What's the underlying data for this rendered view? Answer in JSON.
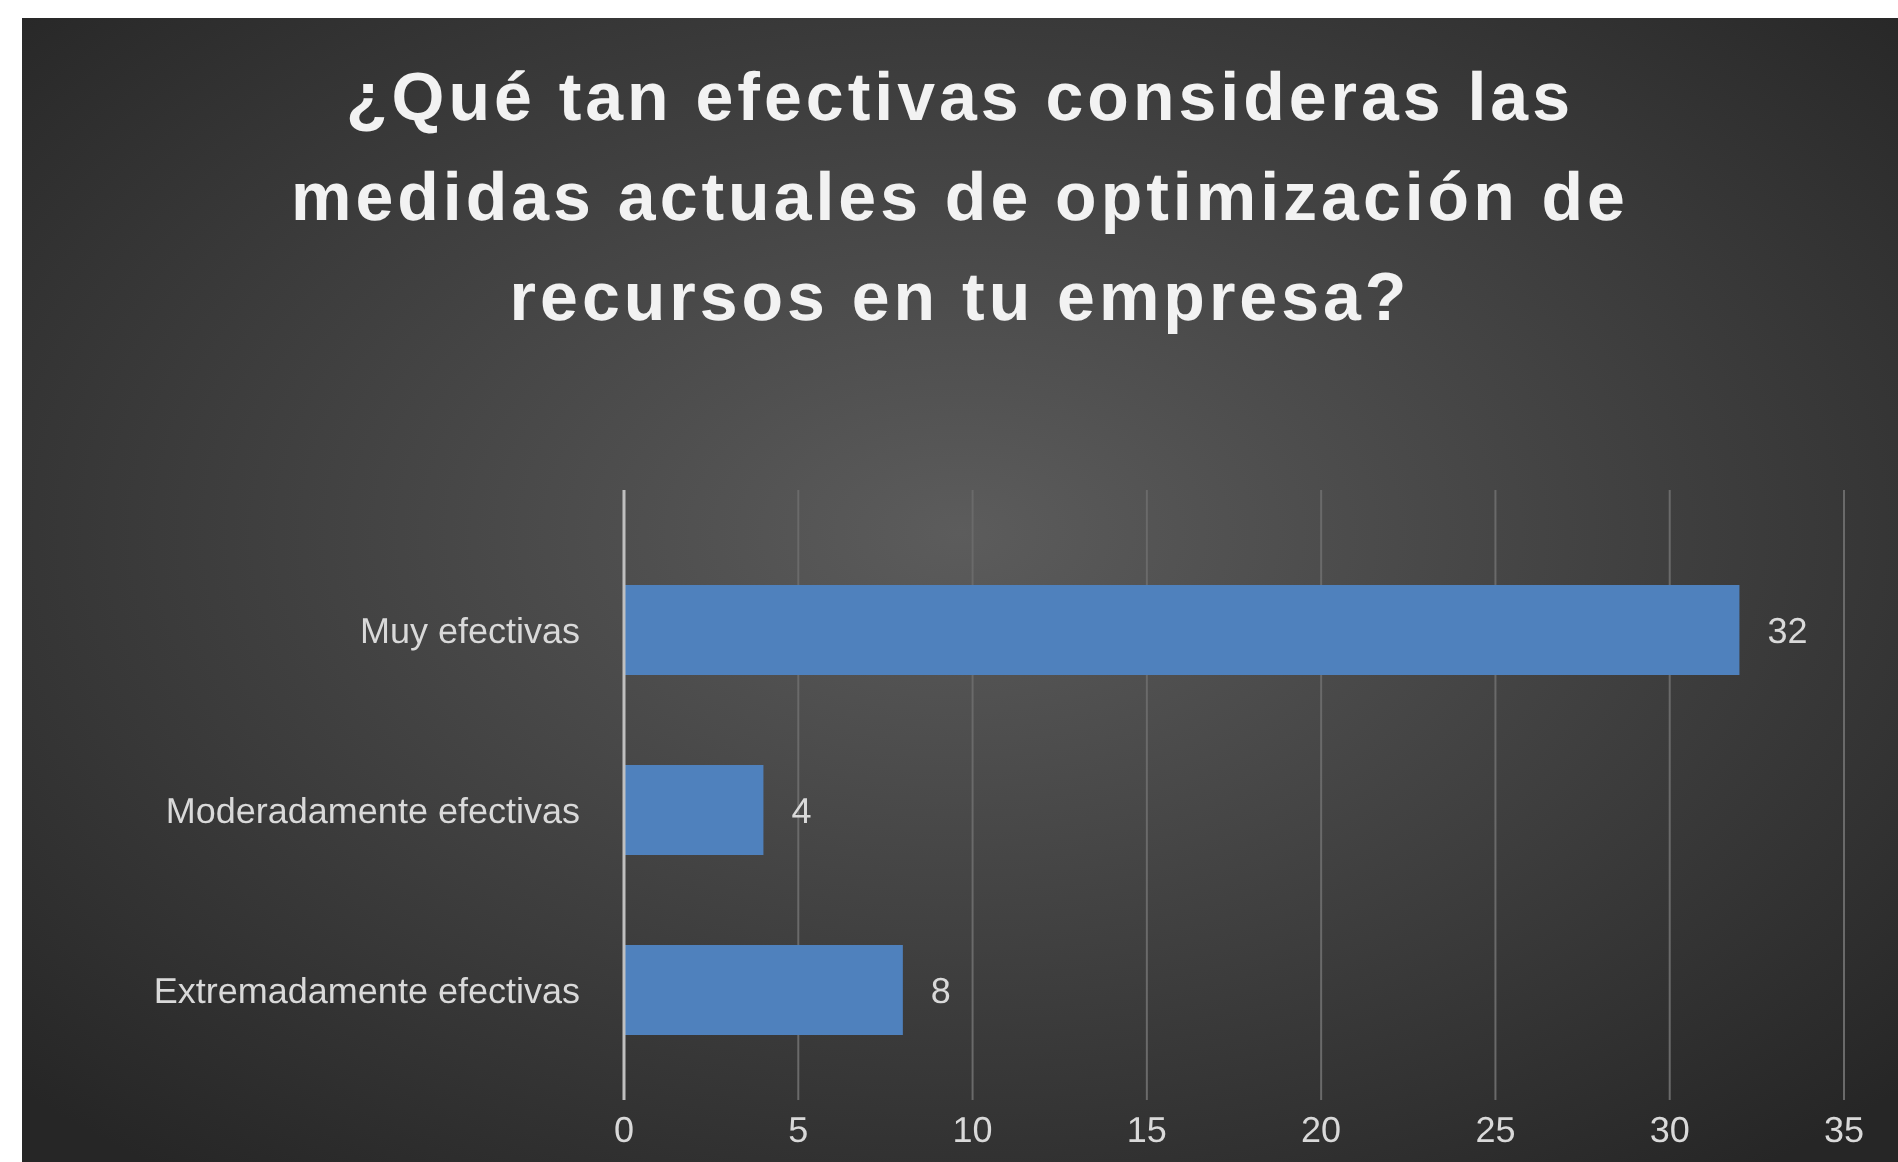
{
  "chart_data": {
    "type": "bar",
    "orientation": "horizontal",
    "title": "¿Qué tan efectivas consideras las medidas actuales de optimización de recursos en tu empresa?",
    "categories": [
      "Muy efectivas",
      "Moderadamente efectivas",
      "Extremadamente efectivas"
    ],
    "values": [
      32,
      4,
      8
    ],
    "color": "#4f81bd",
    "xlim": [
      0,
      35
    ],
    "xticks": [
      0,
      5,
      10,
      15,
      20,
      25,
      30,
      35
    ],
    "grid": "x",
    "data_labels": true
  }
}
